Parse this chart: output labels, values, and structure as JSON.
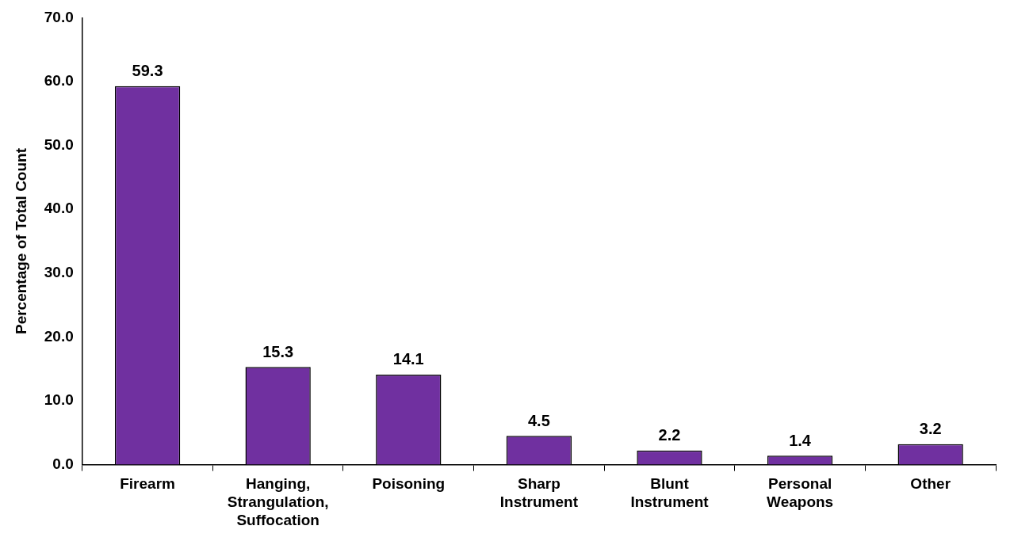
{
  "chart_data": {
    "type": "bar",
    "ylabel": "Percentage of Total Count",
    "categories": [
      "Firearm",
      "Hanging, Strangulation, Suffocation",
      "Poisoning",
      "Sharp Instrument",
      "Blunt Instrument",
      "Personal Weapons",
      "Other"
    ],
    "values": [
      59.3,
      15.3,
      14.1,
      4.5,
      2.2,
      1.4,
      3.2
    ],
    "color": "#7030a0",
    "ylim": [
      0,
      70
    ],
    "yticks": [
      {
        "value": 0,
        "label": "0.0"
      },
      {
        "value": 10,
        "label": "10.0"
      },
      {
        "value": 20,
        "label": "20.0"
      },
      {
        "value": 30,
        "label": "30.0"
      },
      {
        "value": 40,
        "label": "40.0"
      },
      {
        "value": 50,
        "label": "50.0"
      },
      {
        "value": 60,
        "label": "60.0"
      },
      {
        "value": 70,
        "label": "70.0"
      }
    ],
    "grid": false,
    "legend": false,
    "data_labels": true
  }
}
